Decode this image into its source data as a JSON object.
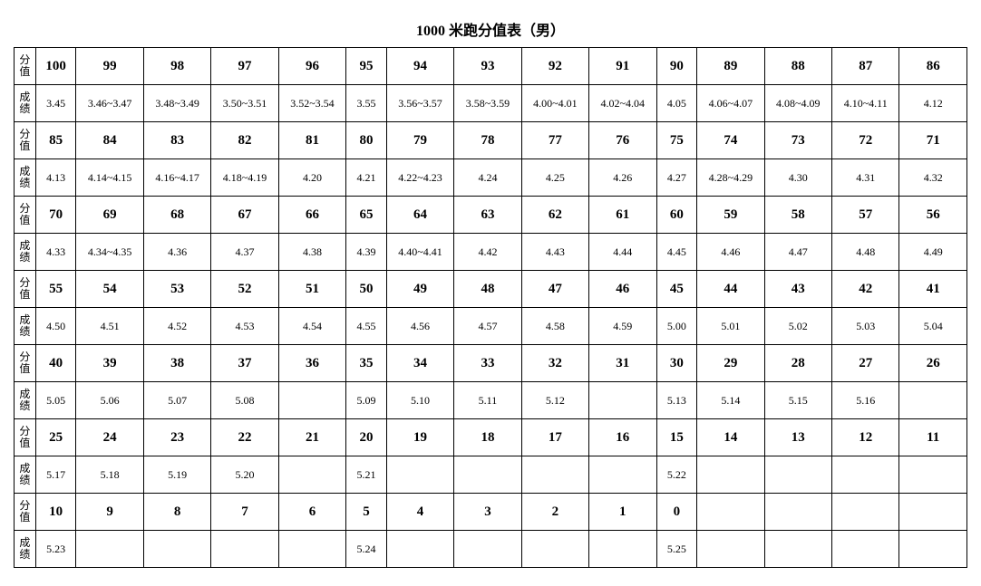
{
  "title": "1000 米跑分值表（男）",
  "row_labels": {
    "score": "分值",
    "time": "成绩"
  },
  "table": {
    "type": "table",
    "background_color": "#ffffff",
    "border_color": "#000000",
    "title_fontsize": 16,
    "score_fontsize": 15,
    "time_fontsize": 12,
    "label_fontsize": 12,
    "columns": 15,
    "narrow_cols": [
      1,
      6,
      11
    ],
    "blocks": [
      {
        "scores": [
          "100",
          "99",
          "98",
          "97",
          "96",
          "95",
          "94",
          "93",
          "92",
          "91",
          "90",
          "89",
          "88",
          "87",
          "86"
        ],
        "times": [
          "3.45",
          "3.46~3.47",
          "3.48~3.49",
          "3.50~3.51",
          "3.52~3.54",
          "3.55",
          "3.56~3.57",
          "3.58~3.59",
          "4.00~4.01",
          "4.02~4.04",
          "4.05",
          "4.06~4.07",
          "4.08~4.09",
          "4.10~4.11",
          "4.12"
        ]
      },
      {
        "scores": [
          "85",
          "84",
          "83",
          "82",
          "81",
          "80",
          "79",
          "78",
          "77",
          "76",
          "75",
          "74",
          "73",
          "72",
          "71"
        ],
        "times": [
          "4.13",
          "4.14~4.15",
          "4.16~4.17",
          "4.18~4.19",
          "4.20",
          "4.21",
          "4.22~4.23",
          "4.24",
          "4.25",
          "4.26",
          "4.27",
          "4.28~4.29",
          "4.30",
          "4.31",
          "4.32"
        ]
      },
      {
        "scores": [
          "70",
          "69",
          "68",
          "67",
          "66",
          "65",
          "64",
          "63",
          "62",
          "61",
          "60",
          "59",
          "58",
          "57",
          "56"
        ],
        "times": [
          "4.33",
          "4.34~4.35",
          "4.36",
          "4.37",
          "4.38",
          "4.39",
          "4.40~4.41",
          "4.42",
          "4.43",
          "4.44",
          "4.45",
          "4.46",
          "4.47",
          "4.48",
          "4.49"
        ]
      },
      {
        "scores": [
          "55",
          "54",
          "53",
          "52",
          "51",
          "50",
          "49",
          "48",
          "47",
          "46",
          "45",
          "44",
          "43",
          "42",
          "41"
        ],
        "times": [
          "4.50",
          "4.51",
          "4.52",
          "4.53",
          "4.54",
          "4.55",
          "4.56",
          "4.57",
          "4.58",
          "4.59",
          "5.00",
          "5.01",
          "5.02",
          "5.03",
          "5.04"
        ]
      },
      {
        "scores": [
          "40",
          "39",
          "38",
          "37",
          "36",
          "35",
          "34",
          "33",
          "32",
          "31",
          "30",
          "29",
          "28",
          "27",
          "26"
        ],
        "times": [
          "5.05",
          "5.06",
          "5.07",
          "5.08",
          "",
          "5.09",
          "5.10",
          "5.11",
          "5.12",
          "",
          "5.13",
          "5.14",
          "5.15",
          "5.16",
          ""
        ]
      },
      {
        "scores": [
          "25",
          "24",
          "23",
          "22",
          "21",
          "20",
          "19",
          "18",
          "17",
          "16",
          "15",
          "14",
          "13",
          "12",
          "11"
        ],
        "times": [
          "5.17",
          "5.18",
          "5.19",
          "5.20",
          "",
          "5.21",
          "",
          "",
          "",
          "",
          "5.22",
          "",
          "",
          "",
          ""
        ]
      },
      {
        "scores": [
          "10",
          "9",
          "8",
          "7",
          "6",
          "5",
          "4",
          "3",
          "2",
          "1",
          "0",
          "",
          "",
          "",
          ""
        ],
        "times": [
          "5.23",
          "",
          "",
          "",
          "",
          "5.24",
          "",
          "",
          "",
          "",
          "5.25",
          "",
          "",
          "",
          ""
        ]
      }
    ]
  }
}
